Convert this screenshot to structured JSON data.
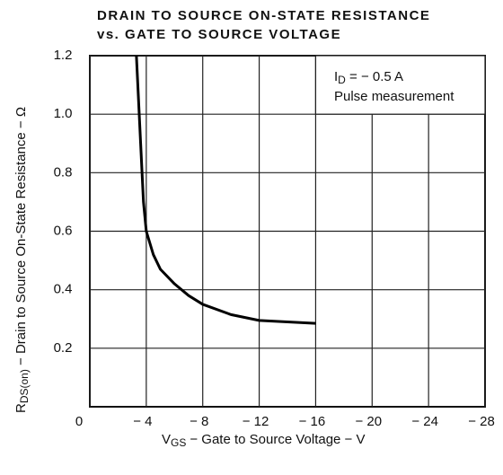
{
  "chart_data": {
    "type": "line",
    "title": [
      "DRAIN TO SOURCE ON-STATE RESISTANCE",
      "vs. GATE TO SOURCE VOLTAGE"
    ],
    "xlabel": {
      "symbol": "V",
      "subscript": "GS",
      "text": "− Gate to Source Voltage − V"
    },
    "ylabel": {
      "symbol": "R",
      "subscript": "DS(on)",
      "text": " − Drain to Source On-State Resistance − Ω"
    },
    "annotation": {
      "symbol": "I",
      "subscript": "D",
      "text": " = − 0.5 A",
      "note": "Pulse measurement"
    },
    "x": [
      -3.3,
      -3.6,
      -3.8,
      -4,
      -4.5,
      -5,
      -6,
      -7,
      -8,
      -10,
      -12,
      -14,
      -16
    ],
    "values": [
      1.2,
      0.9,
      0.7,
      0.6,
      0.52,
      0.47,
      0.42,
      0.38,
      0.35,
      0.315,
      0.295,
      0.29,
      0.285
    ],
    "color": "#000000",
    "xlim": [
      0,
      -28
    ],
    "xticks": [
      0,
      {
        "value": -4,
        "label": "− 4"
      },
      {
        "value": -8,
        "label": "− 8"
      },
      {
        "value": -12,
        "label": "− 12"
      },
      {
        "value": -16,
        "label": "− 16"
      },
      {
        "value": -20,
        "label": "− 20"
      },
      {
        "value": -24,
        "label": "− 24"
      },
      {
        "value": -28,
        "label": "− 28"
      }
    ],
    "ylim": [
      0,
      1.2
    ],
    "yticks": [
      0.2,
      0.4,
      0.6,
      0.8,
      {
        "value": 1,
        "label": "1.0"
      },
      1.2
    ],
    "grid": true
  }
}
